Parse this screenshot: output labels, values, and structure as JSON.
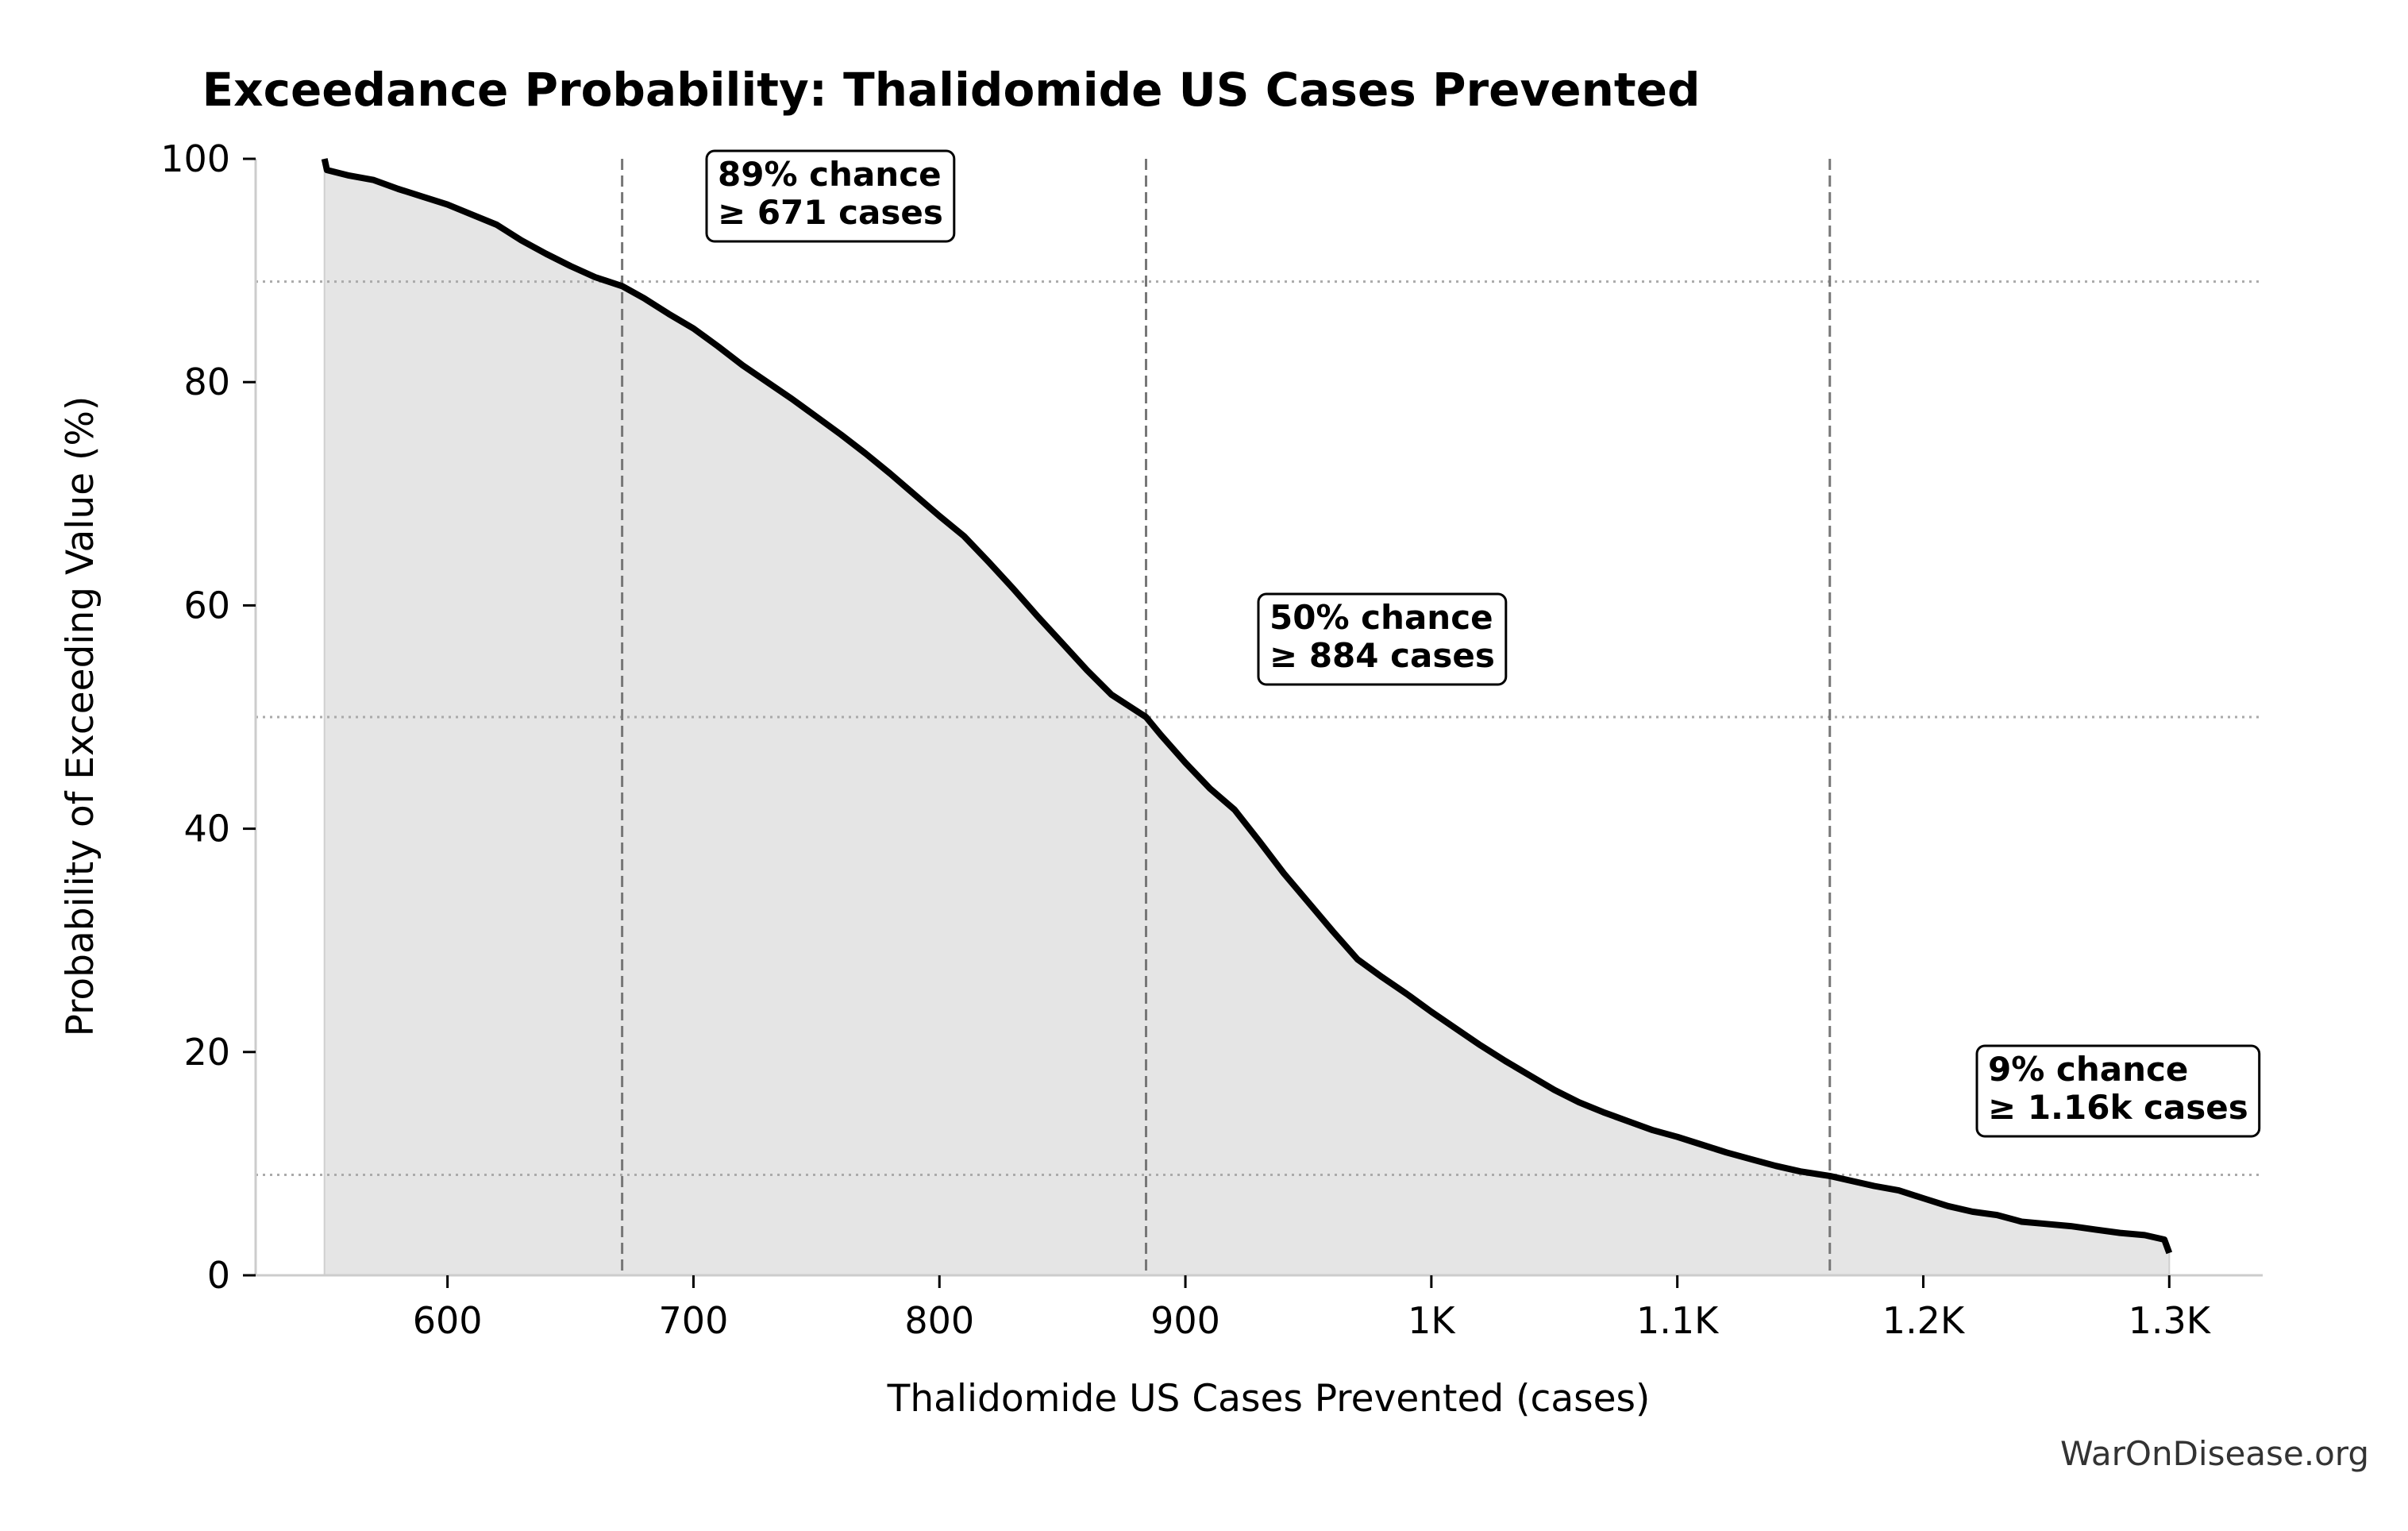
{
  "chart_data": {
    "type": "area",
    "title": "Exceedance Probability: Thalidomide US Cases Prevented",
    "xlabel": "Thalidomide US Cases Prevented (cases)",
    "ylabel": "Probability of Exceeding Value (%)",
    "xlim": [
      522,
      1338
    ],
    "ylim": [
      0,
      100
    ],
    "x_ticks": [
      {
        "value": 600,
        "label": "600"
      },
      {
        "value": 700,
        "label": "700"
      },
      {
        "value": 800,
        "label": "800"
      },
      {
        "value": 900,
        "label": "900"
      },
      {
        "value": 1000,
        "label": "1K"
      },
      {
        "value": 1100,
        "label": "1.1K"
      },
      {
        "value": 1200,
        "label": "1.2K"
      },
      {
        "value": 1300,
        "label": "1.3K"
      }
    ],
    "y_ticks": [
      {
        "value": 0,
        "label": "0"
      },
      {
        "value": 20,
        "label": "20"
      },
      {
        "value": 40,
        "label": "40"
      },
      {
        "value": 60,
        "label": "60"
      },
      {
        "value": 80,
        "label": "80"
      },
      {
        "value": 100,
        "label": "100"
      }
    ],
    "grid": false,
    "series": [
      {
        "x": [
          550,
          551,
          560,
          570,
          580,
          590,
          600,
          610,
          620,
          630,
          640,
          650,
          660,
          671,
          680,
          690,
          700,
          710,
          720,
          730,
          740,
          750,
          760,
          770,
          780,
          790,
          800,
          810,
          820,
          830,
          840,
          850,
          860,
          870,
          884,
          890,
          900,
          910,
          920,
          930,
          940,
          950,
          960,
          970,
          980,
          990,
          1000,
          1010,
          1020,
          1030,
          1040,
          1050,
          1060,
          1070,
          1080,
          1090,
          1100,
          1110,
          1120,
          1130,
          1140,
          1150,
          1162,
          1170,
          1180,
          1190,
          1200,
          1210,
          1220,
          1230,
          1240,
          1250,
          1260,
          1270,
          1280,
          1290,
          1298,
          1300
        ],
        "y": [
          100,
          99,
          98.5,
          98.1,
          97.3,
          96.6,
          95.9,
          95,
          94.1,
          92.7,
          91.5,
          90.4,
          89.4,
          88.6,
          87.5,
          86.1,
          84.8,
          83.2,
          81.5,
          80,
          78.5,
          76.9,
          75.3,
          73.6,
          71.8,
          69.9,
          68,
          66.2,
          63.9,
          61.5,
          59,
          56.6,
          54.2,
          52,
          50,
          48.4,
          45.9,
          43.6,
          41.7,
          38.9,
          36,
          33.4,
          30.8,
          28.3,
          26.7,
          25.2,
          23.6,
          22.1,
          20.6,
          19.2,
          17.9,
          16.6,
          15.5,
          14.6,
          13.8,
          13,
          12.4,
          11.7,
          11,
          10.4,
          9.8,
          9.3,
          8.9,
          8.5,
          8,
          7.6,
          6.9,
          6.2,
          5.7,
          5.4,
          4.8,
          4.6,
          4.4,
          4.1,
          3.8,
          3.6,
          3.2,
          2.0
        ]
      }
    ],
    "reference_lines": {
      "vertical": [
        671,
        884,
        1162
      ],
      "horizontal": [
        89,
        50,
        9
      ]
    },
    "annotations": [
      {
        "line1": "89% chance",
        "line2": "≥ 671 cases"
      },
      {
        "line1": "50% chance",
        "line2": "≥ 884 cases"
      },
      {
        "line1": "9% chance",
        "line2": "≥ 1.16k cases"
      }
    ],
    "colors": {
      "line": "#000000",
      "fill": "#e5e5e5",
      "reference_vertical": "#777777",
      "reference_horizontal": "#aaaaaa"
    }
  },
  "watermark": "WarOnDisease.org"
}
